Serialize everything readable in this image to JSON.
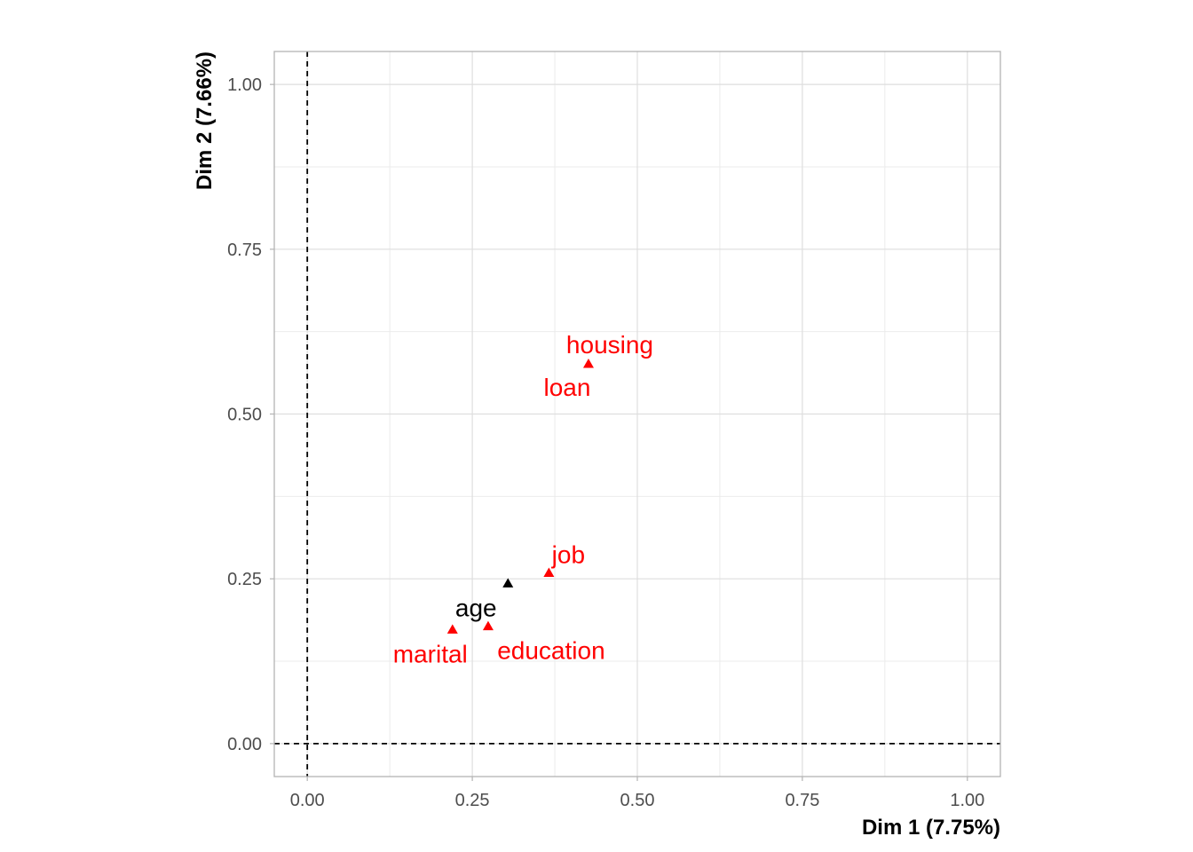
{
  "chart_data": {
    "type": "scatter",
    "xlabel": "Dim 1 (7.75%)",
    "ylabel": "Dim 2 (7.66%)",
    "xlim": [
      -0.05,
      1.05
    ],
    "ylim": [
      -0.05,
      1.05
    ],
    "x_ticks": [
      0.0,
      0.25,
      0.5,
      0.75,
      1.0
    ],
    "y_ticks": [
      0.0,
      0.25,
      0.5,
      0.75,
      1.0
    ],
    "x_tick_labels": [
      "0.00",
      "0.25",
      "0.50",
      "0.75",
      "1.00"
    ],
    "y_tick_labels": [
      "0.00",
      "0.25",
      "0.50",
      "0.75",
      "1.00"
    ],
    "grid": true,
    "reference_lines": {
      "x": 0,
      "y": 0,
      "style": "dashed"
    },
    "points": [
      {
        "label": "housing",
        "x": 0.426,
        "y": 0.576,
        "color": "#ff0000"
      },
      {
        "label": "loan",
        "x": 0.426,
        "y": 0.576,
        "color": "#ff0000"
      },
      {
        "label": "job",
        "x": 0.366,
        "y": 0.259,
        "color": "#ff0000"
      },
      {
        "label": "age",
        "x": 0.304,
        "y": 0.243,
        "color": "#000000"
      },
      {
        "label": "education",
        "x": 0.274,
        "y": 0.178,
        "color": "#ff0000"
      },
      {
        "label": "marital",
        "x": 0.22,
        "y": 0.173,
        "color": "#ff0000"
      }
    ]
  }
}
